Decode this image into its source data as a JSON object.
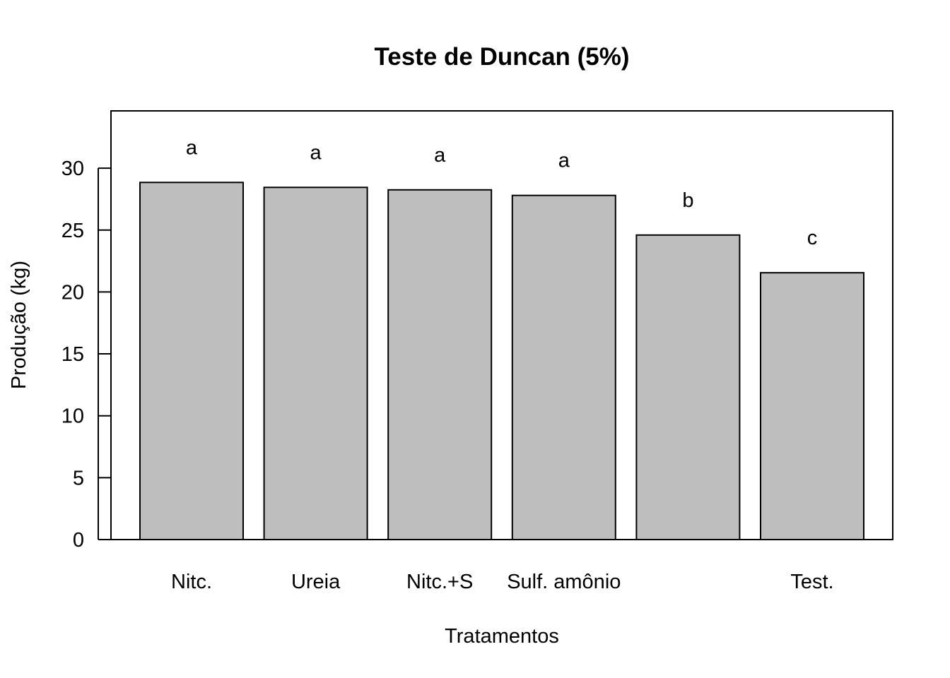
{
  "chart_data": {
    "type": "bar",
    "title": "Teste de Duncan (5%)",
    "xlabel": "Tratamentos",
    "ylabel": "Produção (kg)",
    "categories": [
      "Nitc.",
      "Ureia",
      "Nitc.+S",
      "Sulf. amônio",
      "",
      "Test."
    ],
    "values": [
      28.85,
      28.45,
      28.25,
      27.8,
      24.6,
      21.55
    ],
    "group_labels": [
      "a",
      "a",
      "a",
      "a",
      "b",
      "c"
    ],
    "yticks": [
      0,
      5,
      10,
      15,
      20,
      25,
      30
    ],
    "ylim": [
      0,
      34.6
    ],
    "bar_color": "#bebebe",
    "grid": false
  }
}
